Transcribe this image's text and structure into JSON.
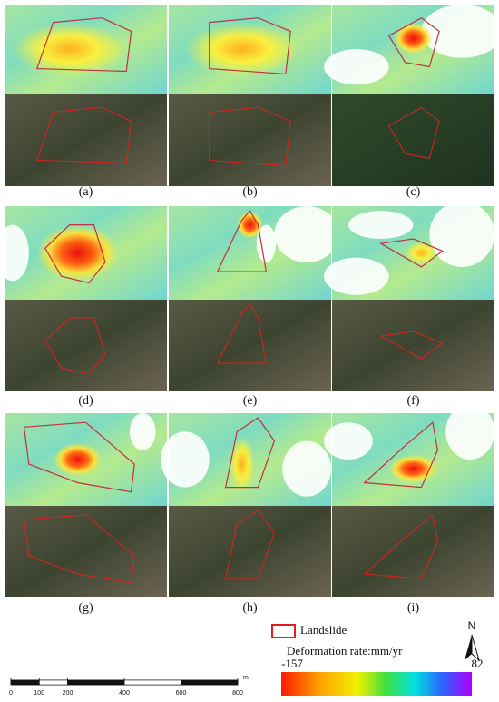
{
  "panels": [
    {
      "label": "(a)"
    },
    {
      "label": "(b)"
    },
    {
      "label": "(c)"
    },
    {
      "label": "(d)"
    },
    {
      "label": "(e)"
    },
    {
      "label": "(f)"
    },
    {
      "label": "(g)"
    },
    {
      "label": "(h)"
    },
    {
      "label": "(i)"
    }
  ],
  "legend": {
    "landslide": "Landslide",
    "deformation_label": "Deformation rate:mm/yr",
    "min": -157,
    "max": 82
  },
  "north": "N",
  "scale_bar": {
    "ticks": [
      0,
      100,
      200,
      400,
      600,
      800
    ],
    "unit": "m"
  }
}
